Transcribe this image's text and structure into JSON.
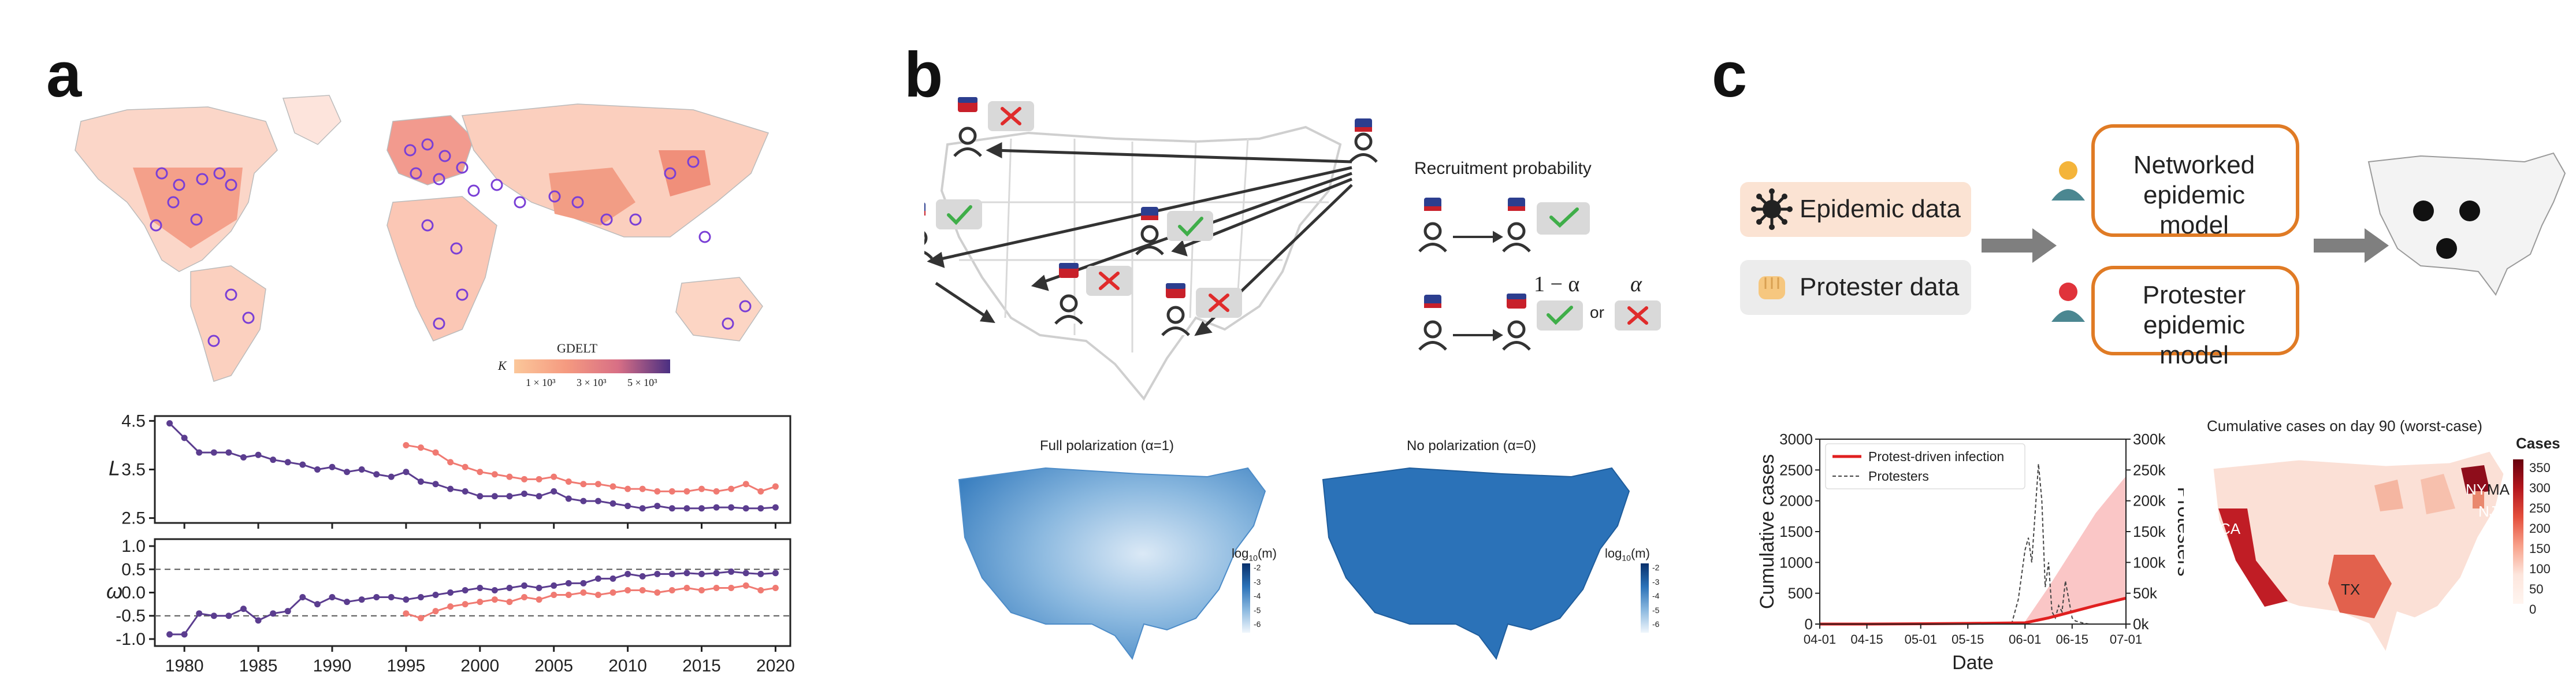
{
  "panels": {
    "a": "a",
    "b": "b",
    "c": "c"
  },
  "panel_a": {
    "map_legend": {
      "title": "GDELT",
      "symbol": "K",
      "ticks": [
        "1 × 10³",
        "3 × 10³",
        "5 × 10³"
      ]
    },
    "chart_data": [
      {
        "type": "line",
        "ylabel": "L",
        "xlabel": "",
        "ylim": [
          2.4,
          4.6
        ],
        "yticks": [
          "2.5",
          "3.5",
          "4.5"
        ],
        "xticks": [
          "1980",
          "1985",
          "1990",
          "1995",
          "2000",
          "2005",
          "2010",
          "2015",
          "2020"
        ],
        "xlim": [
          1978,
          2021
        ],
        "series": [
          {
            "color": "#5b3d8f",
            "x": [
              1979,
              1980,
              1981,
              1982,
              1983,
              1984,
              1985,
              1986,
              1987,
              1988,
              1989,
              1990,
              1991,
              1992,
              1993,
              1994,
              1995,
              1996,
              1997,
              1998,
              1999,
              2000,
              2001,
              2002,
              2003,
              2004,
              2005,
              2006,
              2007,
              2008,
              2009,
              2010,
              2011,
              2012,
              2013,
              2014,
              2015,
              2016,
              2017,
              2018,
              2019,
              2020
            ],
            "values": [
              4.45,
              4.15,
              3.85,
              3.85,
              3.85,
              3.75,
              3.8,
              3.7,
              3.65,
              3.6,
              3.5,
              3.55,
              3.45,
              3.5,
              3.4,
              3.35,
              3.45,
              3.25,
              3.2,
              3.1,
              3.05,
              2.95,
              2.95,
              2.95,
              3.0,
              2.95,
              3.05,
              2.9,
              2.85,
              2.85,
              2.8,
              2.75,
              2.7,
              2.75,
              2.7,
              2.7,
              2.7,
              2.72,
              2.72,
              2.7,
              2.7,
              2.72
            ]
          },
          {
            "color": "#f07a72",
            "x": [
              1995,
              1996,
              1997,
              1998,
              1999,
              2000,
              2001,
              2002,
              2003,
              2004,
              2005,
              2006,
              2007,
              2008,
              2009,
              2010,
              2011,
              2012,
              2013,
              2014,
              2015,
              2016,
              2017,
              2018,
              2019,
              2020
            ],
            "values": [
              4.0,
              3.95,
              3.85,
              3.65,
              3.55,
              3.45,
              3.4,
              3.35,
              3.3,
              3.3,
              3.35,
              3.25,
              3.2,
              3.2,
              3.15,
              3.1,
              3.1,
              3.05,
              3.05,
              3.05,
              3.1,
              3.05,
              3.1,
              3.2,
              3.05,
              3.15
            ]
          }
        ]
      },
      {
        "type": "line",
        "ylabel": "ω",
        "xlabel": "",
        "ylim": [
          -1.15,
          1.15
        ],
        "yticks": [
          "1.0",
          "0.5",
          "0.0",
          "-0.5",
          "-1.0"
        ],
        "hlines": [
          0.5,
          -0.5
        ],
        "xticks": [
          "1980",
          "1985",
          "1990",
          "1995",
          "2000",
          "2005",
          "2010",
          "2015",
          "2020"
        ],
        "xlim": [
          1978,
          2021
        ],
        "series": [
          {
            "color": "#5b3d8f",
            "x": [
              1979,
              1980,
              1981,
              1982,
              1983,
              1984,
              1985,
              1986,
              1987,
              1988,
              1989,
              1990,
              1991,
              1992,
              1993,
              1994,
              1995,
              1996,
              1997,
              1998,
              1999,
              2000,
              2001,
              2002,
              2003,
              2004,
              2005,
              2006,
              2007,
              2008,
              2009,
              2010,
              2011,
              2012,
              2013,
              2014,
              2015,
              2016,
              2017,
              2018,
              2019,
              2020
            ],
            "values": [
              -0.9,
              -0.9,
              -0.45,
              -0.5,
              -0.5,
              -0.35,
              -0.6,
              -0.45,
              -0.4,
              -0.1,
              -0.25,
              -0.1,
              -0.2,
              -0.15,
              -0.1,
              -0.1,
              -0.15,
              -0.1,
              -0.05,
              0.0,
              0.05,
              0.1,
              0.05,
              0.1,
              0.15,
              0.1,
              0.15,
              0.2,
              0.2,
              0.3,
              0.3,
              0.4,
              0.35,
              0.4,
              0.4,
              0.42,
              0.4,
              0.42,
              0.45,
              0.42,
              0.4,
              0.42
            ]
          },
          {
            "color": "#f07a72",
            "x": [
              1995,
              1996,
              1997,
              1998,
              1999,
              2000,
              2001,
              2002,
              2003,
              2004,
              2005,
              2006,
              2007,
              2008,
              2009,
              2010,
              2011,
              2012,
              2013,
              2014,
              2015,
              2016,
              2017,
              2018,
              2019,
              2020
            ],
            "values": [
              -0.45,
              -0.55,
              -0.4,
              -0.3,
              -0.25,
              -0.2,
              -0.15,
              -0.2,
              -0.1,
              -0.15,
              -0.05,
              -0.05,
              0.0,
              -0.05,
              0.0,
              0.05,
              0.05,
              0.0,
              0.05,
              0.1,
              0.05,
              0.1,
              0.1,
              0.15,
              0.05,
              0.1
            ]
          }
        ]
      }
    ]
  },
  "panel_b": {
    "recruitment_title": "Recruitment probability",
    "prob_a": "1 − α",
    "prob_b": "α",
    "or_label": "or",
    "map_left_title": "Full polarization (α=1)",
    "map_right_title": "No polarization (α=0)",
    "colorbar_label_base": "log",
    "colorbar_label_sub": "10",
    "colorbar_label_arg": "(m)",
    "colorbar_ticks": [
      "-2",
      "-3",
      "-4",
      "-5",
      "-6"
    ]
  },
  "panel_c": {
    "epidemic_data": "Epidemic data",
    "protester_data": "Protester data",
    "networked_model": "Networked epidemic model",
    "protester_model": "Protester epidemic model",
    "map_title": "Cumulative cases on day 90 (worst-case)",
    "cases_label": "Cases",
    "cases_ticks": [
      "350",
      "300",
      "250",
      "200",
      "150",
      "100",
      "50",
      "0"
    ],
    "state_labels": {
      "ca": "CA",
      "tx": "TX",
      "ny": "NY",
      "ma": "MA",
      "nj": "NJ"
    },
    "chart_data": {
      "type": "line",
      "xlabel": "Date",
      "ylabel": "Cumulative cases",
      "y2label": "Protesters",
      "ylim": [
        0,
        3000
      ],
      "yticks": [
        "3000",
        "2500",
        "2000",
        "1500",
        "1000",
        "500",
        "0"
      ],
      "y2ticks": [
        "300k",
        "250k",
        "200k",
        "150k",
        "100k",
        "50k",
        "0k"
      ],
      "xticks": [
        "04-01",
        "04-15",
        "05-01",
        "05-15",
        "06-01",
        "06-15",
        "07-01"
      ],
      "legend": [
        "Protest-driven infection",
        "Protesters"
      ],
      "legend_position": "top-left",
      "series": [
        {
          "name": "Protest-driven infection",
          "color": "#e02020",
          "x": [
            "04-01",
            "04-15",
            "05-01",
            "05-15",
            "06-01",
            "06-08",
            "06-15",
            "06-22",
            "07-01"
          ],
          "values": [
            0,
            0,
            5,
            10,
            20,
            100,
            200,
            300,
            420
          ],
          "band_upper": [
            0,
            0,
            5,
            10,
            40,
            600,
            1200,
            1800,
            2400
          ]
        },
        {
          "name": "Protesters",
          "color": "#444444",
          "x": [
            "05-28",
            "05-30",
            "06-01",
            "06-02",
            "06-03",
            "06-04",
            "06-05",
            "06-06",
            "06-07",
            "06-08",
            "06-09",
            "06-10",
            "06-11",
            "06-12",
            "06-13",
            "06-14",
            "06-15",
            "06-16",
            "06-18",
            "06-20",
            "07-01"
          ],
          "values_k": [
            0,
            40,
            120,
            140,
            100,
            180,
            260,
            200,
            60,
            100,
            20,
            10,
            30,
            20,
            70,
            40,
            10,
            5,
            2,
            0,
            0
          ]
        }
      ]
    }
  }
}
